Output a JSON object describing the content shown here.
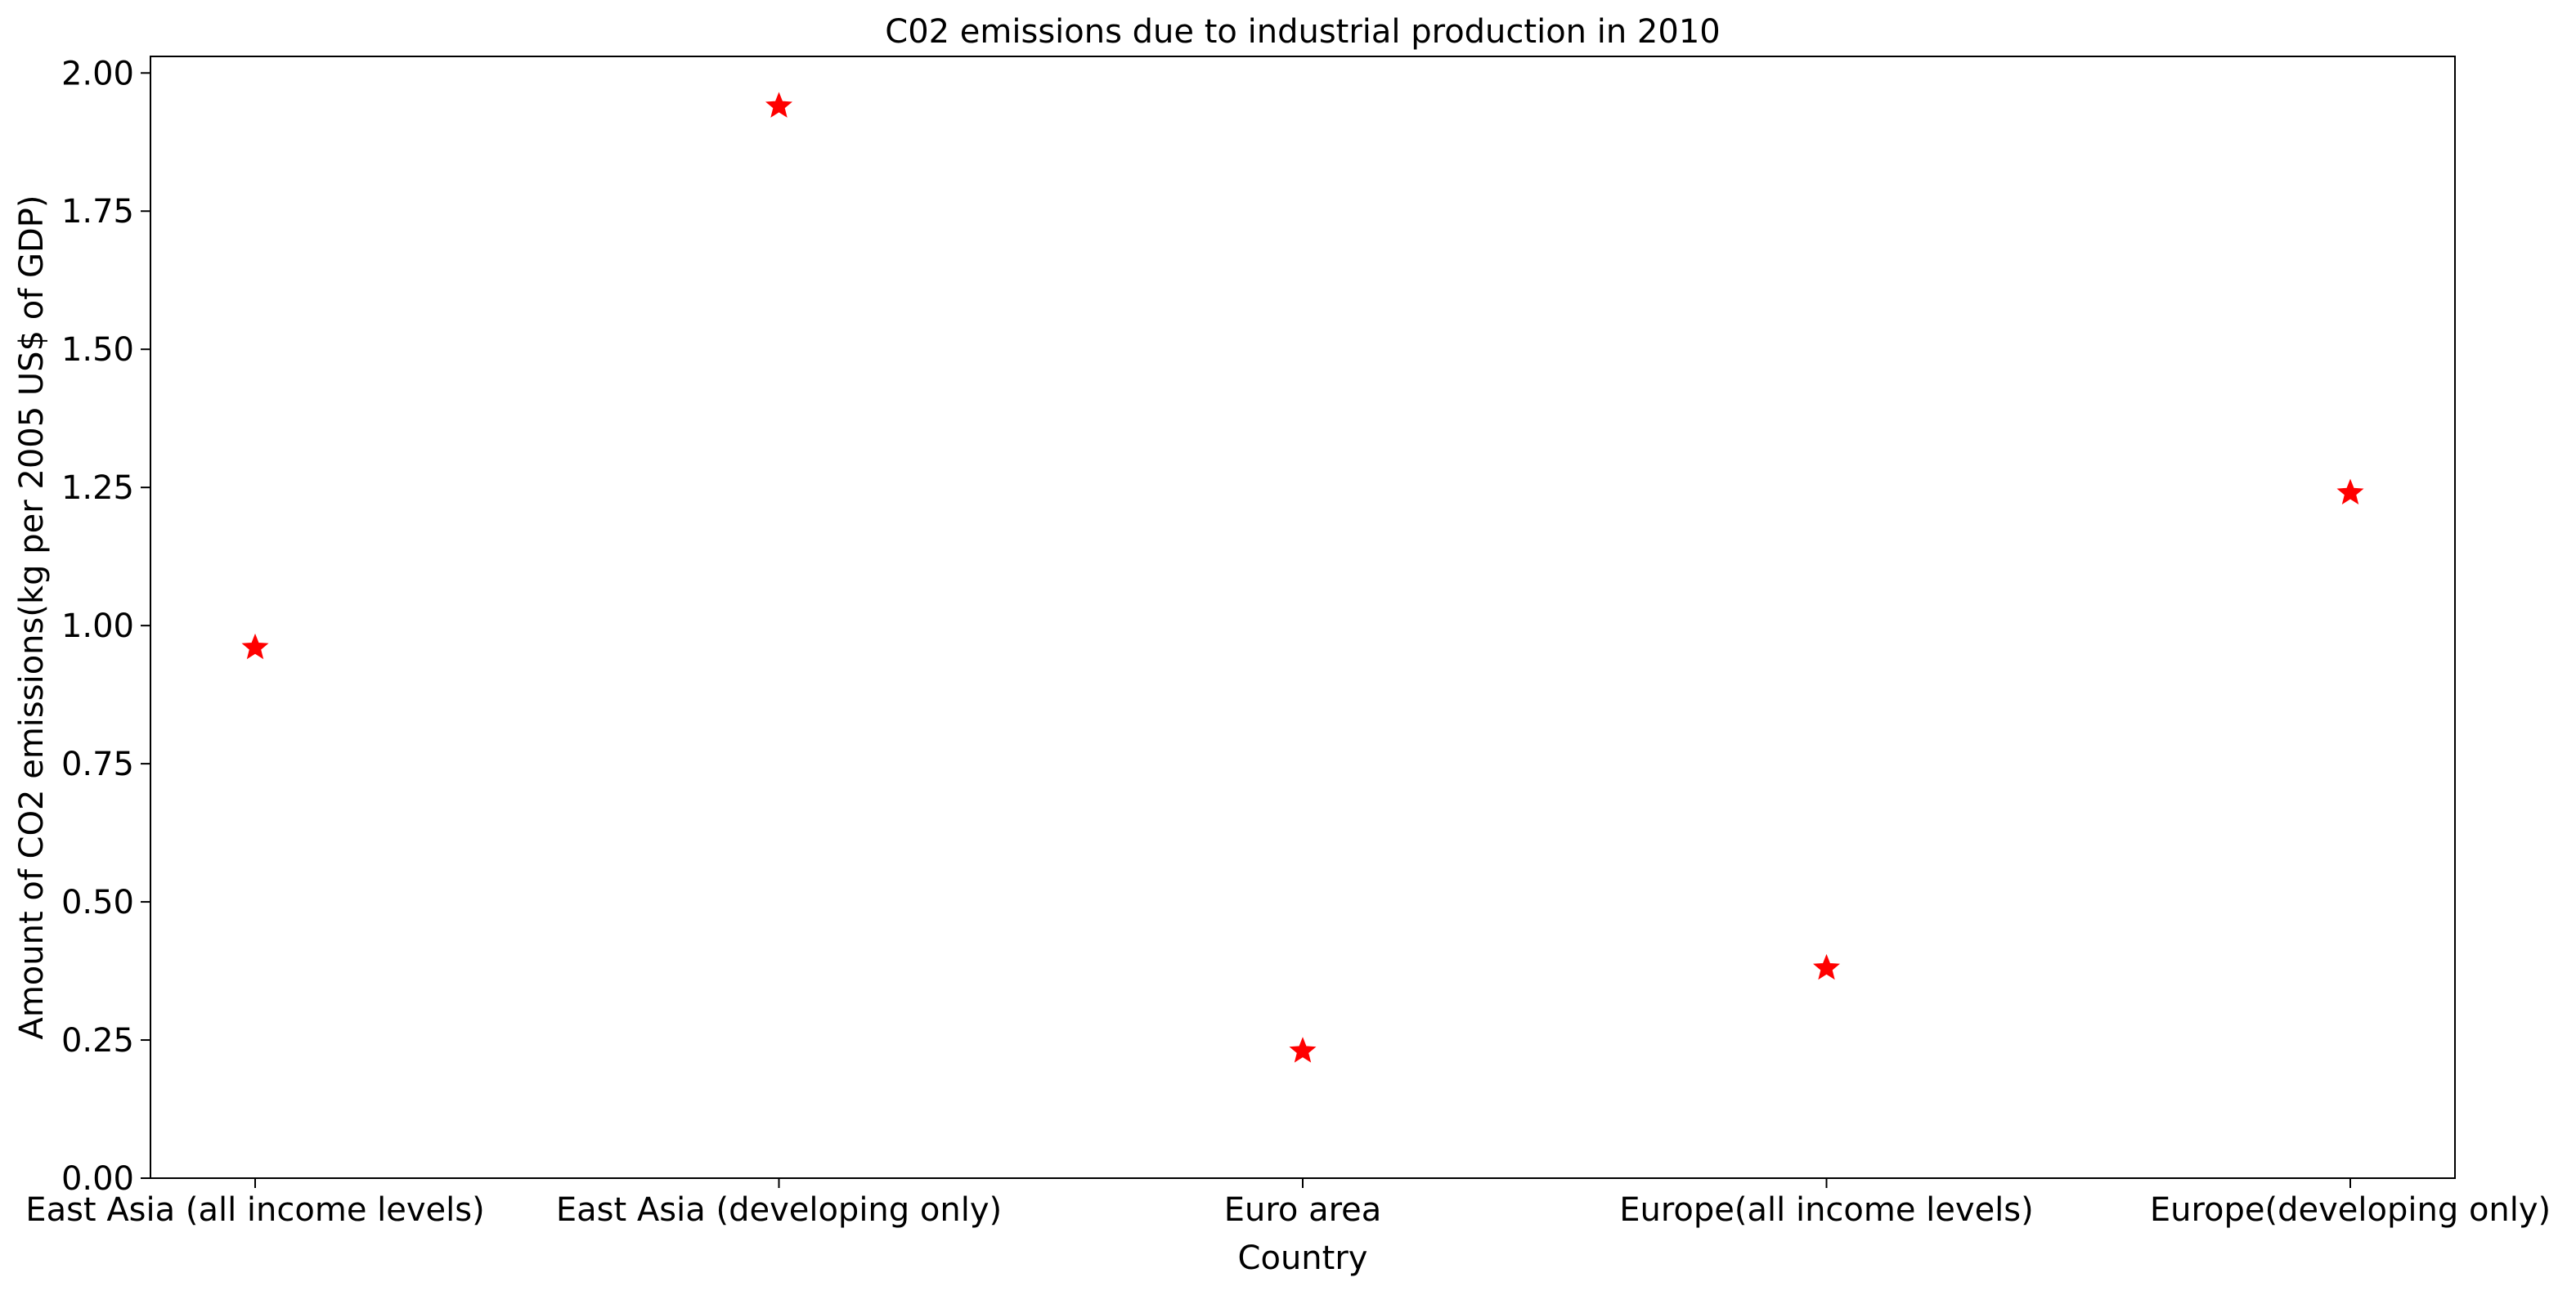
{
  "chart_data": {
    "type": "scatter",
    "title": "C02 emissions due to industrial production in 2010",
    "xlabel": "Country",
    "ylabel": "Amount of CO2 emissions(kg per 2005 US$ of GDP)",
    "categories": [
      "East Asia (all income levels)",
      "East Asia (developing only)",
      "Euro area",
      "Europe(all income levels)",
      "Europe(developing only)"
    ],
    "series": [
      {
        "values": [
          0.96,
          1.94,
          0.23,
          0.38,
          1.24
        ],
        "marker": "star",
        "color": "#ff0000"
      }
    ],
    "ylim": [
      0,
      2.03
    ],
    "yticks": [
      "0.00",
      "0.25",
      "0.50",
      "0.75",
      "1.00",
      "1.25",
      "1.50",
      "1.75",
      "2.00"
    ],
    "grid": false,
    "legend": "none"
  }
}
